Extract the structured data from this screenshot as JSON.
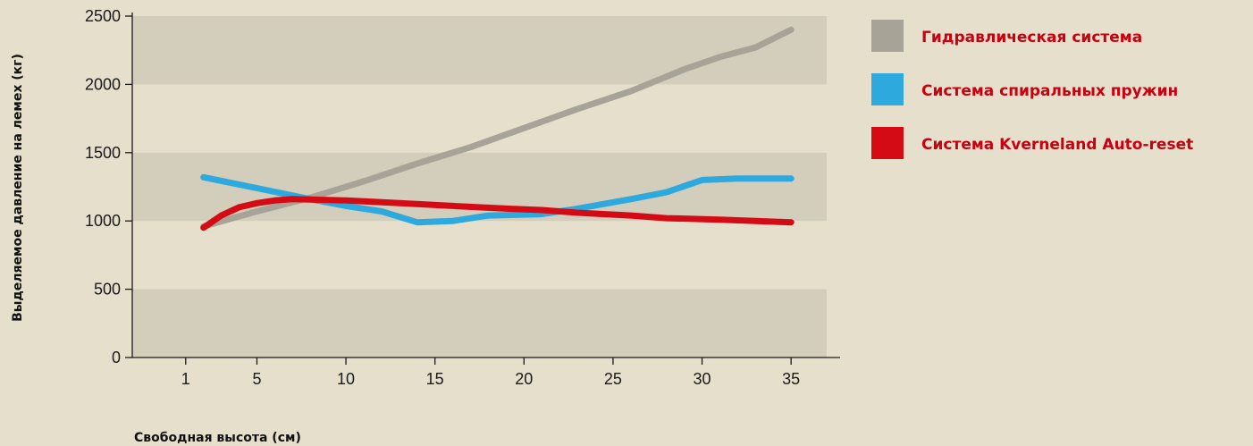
{
  "colors": {
    "background": "#e6dfcc",
    "band": "#d3cdbb",
    "legend_text": "#c8000f",
    "axis": "#1a1a1a"
  },
  "chart_data": {
    "type": "line",
    "xlabel": "Свободная высота (см)",
    "ylabel": "Выделяемое давление на лемех (кг)",
    "xlim": [
      -2,
      37
    ],
    "ylim": [
      0,
      2500
    ],
    "x_ticks": [
      1,
      5,
      10,
      15,
      20,
      25,
      30,
      35
    ],
    "y_ticks": [
      0,
      500,
      1000,
      1500,
      2000,
      2500
    ],
    "grid": "horizontal bands",
    "legend_position": "right",
    "series": [
      {
        "name": "Гидравлическая система",
        "color": "#a7a396",
        "points": [
          [
            2,
            960
          ],
          [
            5,
            1070
          ],
          [
            8,
            1170
          ],
          [
            11,
            1290
          ],
          [
            14,
            1420
          ],
          [
            17,
            1540
          ],
          [
            20,
            1680
          ],
          [
            23,
            1820
          ],
          [
            26,
            1950
          ],
          [
            29,
            2110
          ],
          [
            31,
            2200
          ],
          [
            33,
            2270
          ],
          [
            35,
            2400
          ]
        ]
      },
      {
        "name": "Система спиральных пружин",
        "color": "#2ea9de",
        "points": [
          [
            2,
            1320
          ],
          [
            5,
            1240
          ],
          [
            8,
            1160
          ],
          [
            10,
            1110
          ],
          [
            12,
            1070
          ],
          [
            14,
            990
          ],
          [
            16,
            1000
          ],
          [
            18,
            1040
          ],
          [
            21,
            1050
          ],
          [
            23,
            1090
          ],
          [
            26,
            1160
          ],
          [
            28,
            1210
          ],
          [
            30,
            1300
          ],
          [
            32,
            1310
          ],
          [
            35,
            1310
          ]
        ]
      },
      {
        "name": "Система Kverneland Auto-reset",
        "color": "#d40b14",
        "points": [
          [
            2,
            950
          ],
          [
            3,
            1040
          ],
          [
            4,
            1100
          ],
          [
            5,
            1130
          ],
          [
            6,
            1150
          ],
          [
            7,
            1160
          ],
          [
            10,
            1150
          ],
          [
            13,
            1130
          ],
          [
            16,
            1110
          ],
          [
            19,
            1090
          ],
          [
            21,
            1080
          ],
          [
            23,
            1060
          ],
          [
            26,
            1040
          ],
          [
            28,
            1020
          ],
          [
            31,
            1010
          ],
          [
            35,
            990
          ]
        ]
      }
    ]
  }
}
